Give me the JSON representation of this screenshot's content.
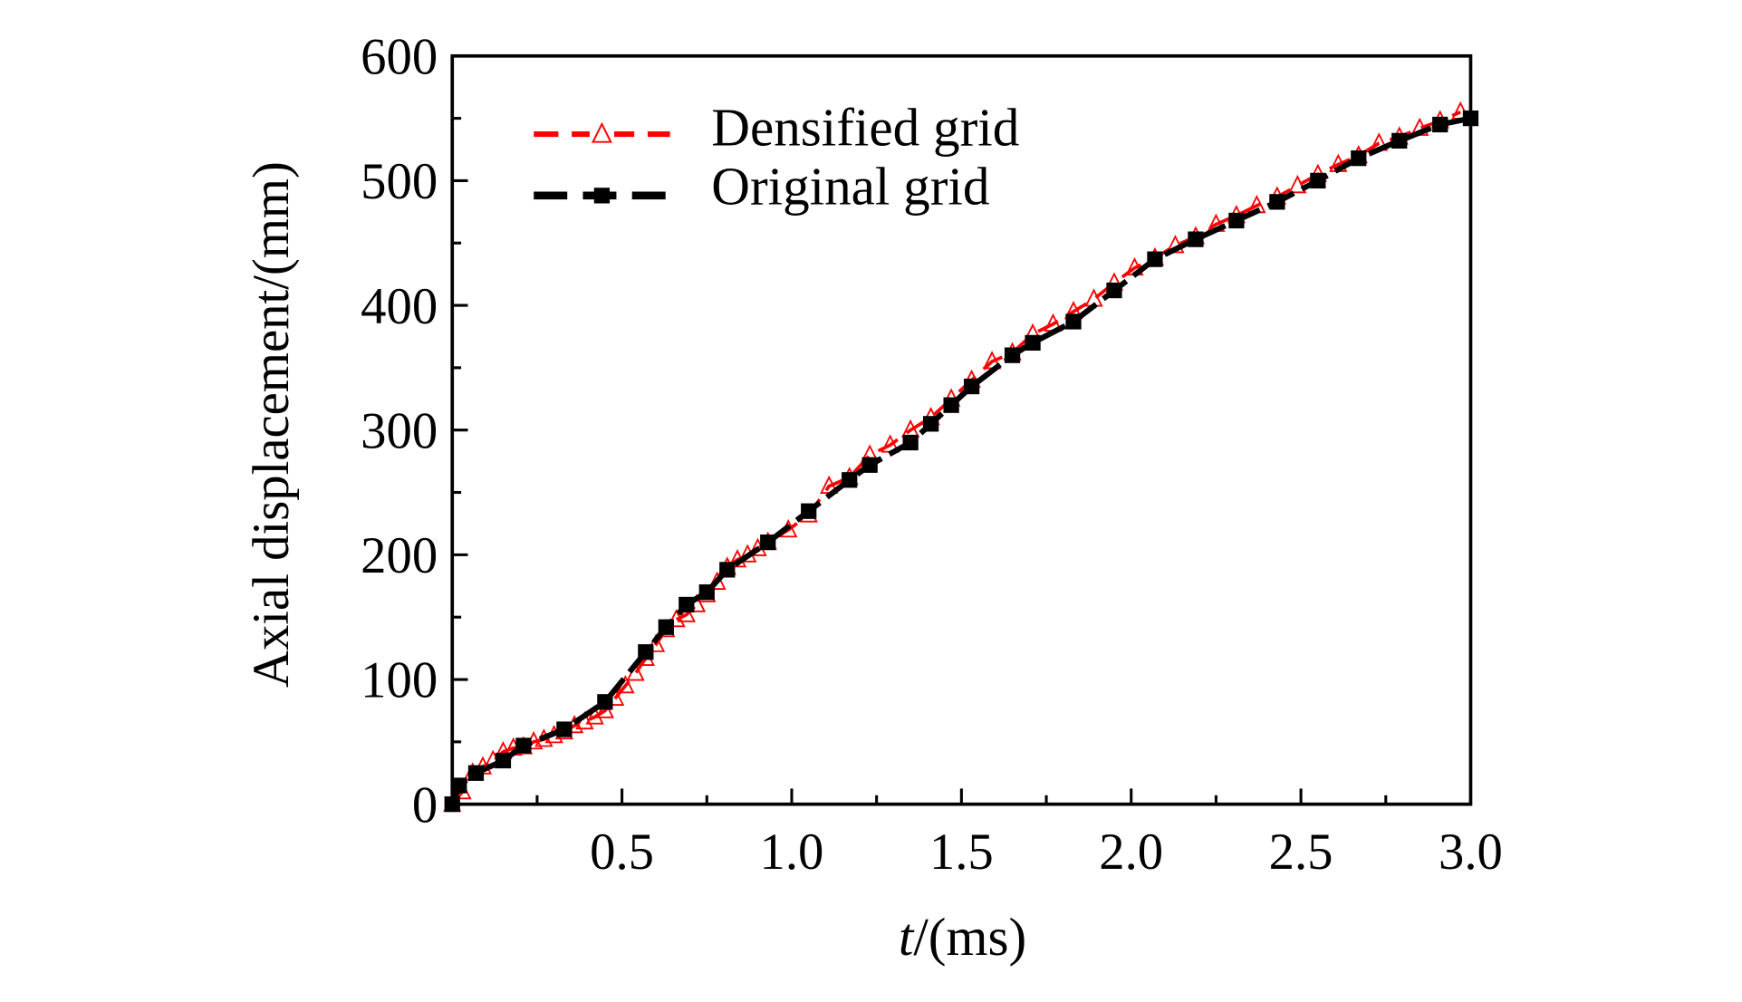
{
  "chart_data": {
    "type": "line",
    "title": "",
    "xlabel_italic": "t",
    "xlabel_rest": "/(ms)",
    "ylabel": "Axial displacement/(mm)",
    "xlim": [
      0,
      3.0
    ],
    "ylim": [
      0,
      600
    ],
    "x_ticks": [
      0.5,
      1.0,
      1.5,
      2.0,
      2.5,
      3.0
    ],
    "x_tick_labels": [
      "0.5",
      "1.0",
      "1.5",
      "2.0",
      "2.5",
      "3.0"
    ],
    "y_ticks": [
      0,
      100,
      200,
      300,
      400,
      500,
      600
    ],
    "y_tick_labels": [
      "0",
      "100",
      "200",
      "300",
      "400",
      "500",
      "600"
    ],
    "grid": false,
    "legend_position": "top-left",
    "series": [
      {
        "name": "Densified grid",
        "color": "#ff0000",
        "marker": "open-triangle",
        "x": [
          0,
          0.03,
          0.06,
          0.09,
          0.12,
          0.15,
          0.18,
          0.21,
          0.24,
          0.27,
          0.3,
          0.33,
          0.36,
          0.39,
          0.42,
          0.45,
          0.48,
          0.51,
          0.54,
          0.57,
          0.6,
          0.63,
          0.66,
          0.69,
          0.72,
          0.75,
          0.78,
          0.81,
          0.84,
          0.87,
          0.9,
          0.93,
          0.99,
          1.05,
          1.11,
          1.17,
          1.23,
          1.29,
          1.35,
          1.41,
          1.47,
          1.53,
          1.59,
          1.65,
          1.71,
          1.77,
          1.83,
          1.89,
          1.95,
          2.01,
          2.07,
          2.13,
          2.19,
          2.25,
          2.31,
          2.37,
          2.43,
          2.49,
          2.55,
          2.61,
          2.67,
          2.73,
          2.79,
          2.85,
          2.91,
          2.97
        ],
        "y": [
          0,
          10,
          25,
          30,
          35,
          42,
          45,
          46,
          50,
          52,
          55,
          58,
          63,
          66,
          70,
          75,
          85,
          95,
          105,
          117,
          128,
          140,
          148,
          152,
          160,
          168,
          178,
          190,
          196,
          200,
          205,
          210,
          220,
          232,
          255,
          262,
          280,
          288,
          300,
          310,
          325,
          340,
          355,
          362,
          377,
          385,
          395,
          405,
          418,
          430,
          438,
          448,
          455,
          465,
          472,
          480,
          487,
          496,
          505,
          513,
          520,
          530,
          535,
          542,
          548,
          555
        ]
      },
      {
        "name": "Original grid",
        "color": "#000000",
        "marker": "filled-square",
        "x": [
          0,
          0.02,
          0.07,
          0.15,
          0.21,
          0.33,
          0.45,
          0.57,
          0.63,
          0.69,
          0.75,
          0.81,
          0.93,
          1.05,
          1.17,
          1.23,
          1.35,
          1.41,
          1.47,
          1.53,
          1.65,
          1.71,
          1.83,
          1.95,
          2.07,
          2.19,
          2.31,
          2.43,
          2.55,
          2.67,
          2.79,
          2.91,
          3.0
        ],
        "y": [
          0,
          15,
          25,
          35,
          47,
          60,
          82,
          122,
          142,
          160,
          170,
          188,
          210,
          235,
          260,
          272,
          290,
          305,
          320,
          335,
          360,
          370,
          387,
          412,
          437,
          453,
          468,
          483,
          500,
          518,
          532,
          545,
          550
        ]
      }
    ]
  }
}
